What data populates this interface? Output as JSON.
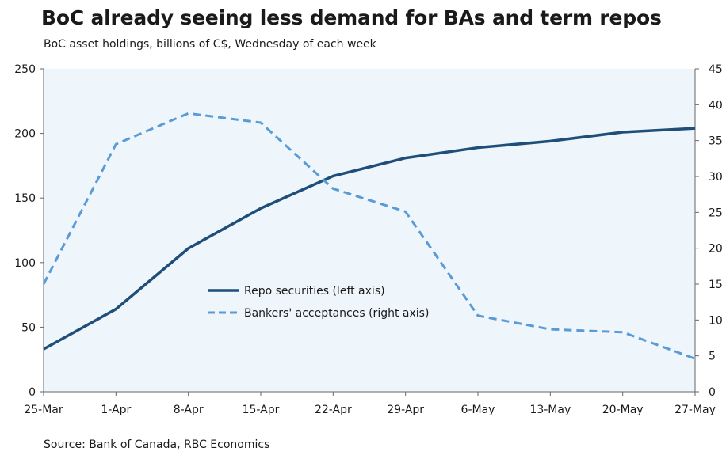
{
  "title": "BoC already seeing less demand for BAs and term repos",
  "subtitle": "BoC asset holdings, billions of C$, Wednesday of each week",
  "source": "Source: Bank of Canada, RBC Economics",
  "colors": {
    "plot_bg": "#EEF6FC",
    "repo": "#1F4E79",
    "ba": "#5B9BD5",
    "axis": "#666666"
  },
  "chart_data": {
    "type": "line",
    "categories": [
      "25-Mar",
      "1-Apr",
      "8-Apr",
      "15-Apr",
      "22-Apr",
      "29-Apr",
      "6-May",
      "13-May",
      "20-May",
      "27-May"
    ],
    "left_axis": {
      "ylim": [
        0,
        250
      ],
      "ticks": [
        "0",
        "50",
        "100",
        "150",
        "200",
        "250"
      ]
    },
    "right_axis": {
      "ylim": [
        0,
        45
      ],
      "ticks": [
        "0",
        "5",
        "10",
        "15",
        "20",
        "25",
        "30",
        "35",
        "40",
        "45"
      ]
    },
    "series": [
      {
        "name": "Repo securities (left axis)",
        "axis": "left",
        "style": "solid",
        "values": [
          33,
          64,
          111,
          142,
          167,
          181,
          189,
          194,
          201,
          204
        ]
      },
      {
        "name": "Bankers' acceptances (right axis)",
        "axis": "right",
        "style": "dashed",
        "values": [
          15,
          34.5,
          38.8,
          37.5,
          28.3,
          25.1,
          10.6,
          8.7,
          8.3,
          4.6
        ]
      }
    ],
    "legend_position": "center"
  }
}
